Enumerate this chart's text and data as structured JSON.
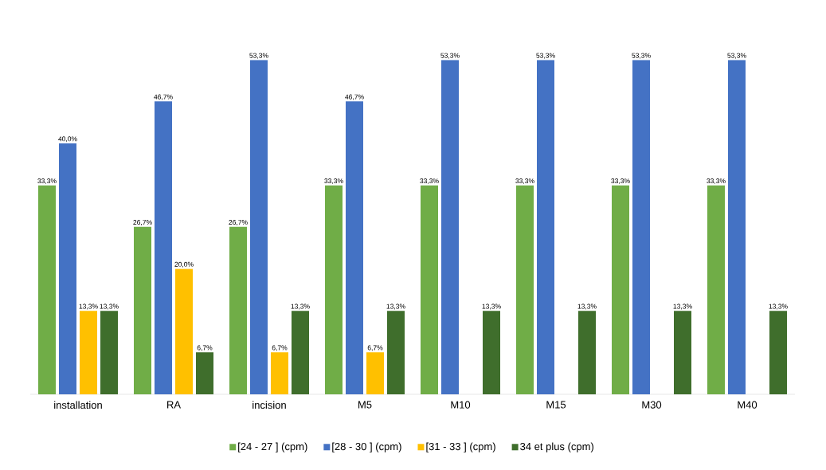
{
  "chart_data": {
    "type": "bar",
    "categories": [
      "installation",
      "RA",
      "incision",
      "M5",
      "M10",
      "M15",
      "M30",
      "M40"
    ],
    "series": [
      {
        "name": "[24  - 27 ] (cpm)",
        "color": "#70ad47",
        "values": [
          33.3,
          26.7,
          26.7,
          33.3,
          33.3,
          33.3,
          33.3,
          33.3
        ],
        "value_labels": [
          "33,3%",
          "26,7%",
          "26,7%",
          "33,3%",
          "33,3%",
          "33,3%",
          "33,3%",
          "33,3%"
        ]
      },
      {
        "name": "[28  - 30 ] (cpm)",
        "color": "#4472c4",
        "values": [
          40.0,
          46.7,
          53.3,
          46.7,
          53.3,
          53.3,
          53.3,
          53.3
        ],
        "value_labels": [
          "40,0%",
          "46,7%",
          "53,3%",
          "46,7%",
          "53,3%",
          "53,3%",
          "53,3%",
          "53,3%"
        ]
      },
      {
        "name": "[31  - 33 ] (cpm)",
        "color": "#ffc000",
        "values": [
          13.3,
          20.0,
          6.7,
          6.7,
          null,
          null,
          null,
          null
        ],
        "value_labels": [
          "13,3%",
          "20,0%",
          "6,7%",
          "6,7%",
          null,
          null,
          null,
          null
        ]
      },
      {
        "name": "34 et plus  (cpm)",
        "color": "#3f6e2c",
        "values": [
          13.3,
          6.7,
          13.3,
          13.3,
          13.3,
          13.3,
          13.3,
          13.3
        ],
        "value_labels": [
          "13,3%",
          "6,7%",
          "13,3%",
          "13,3%",
          "13,3%",
          "13,3%",
          "13,3%",
          "13,3%"
        ]
      }
    ],
    "legend": "bottom"
  }
}
